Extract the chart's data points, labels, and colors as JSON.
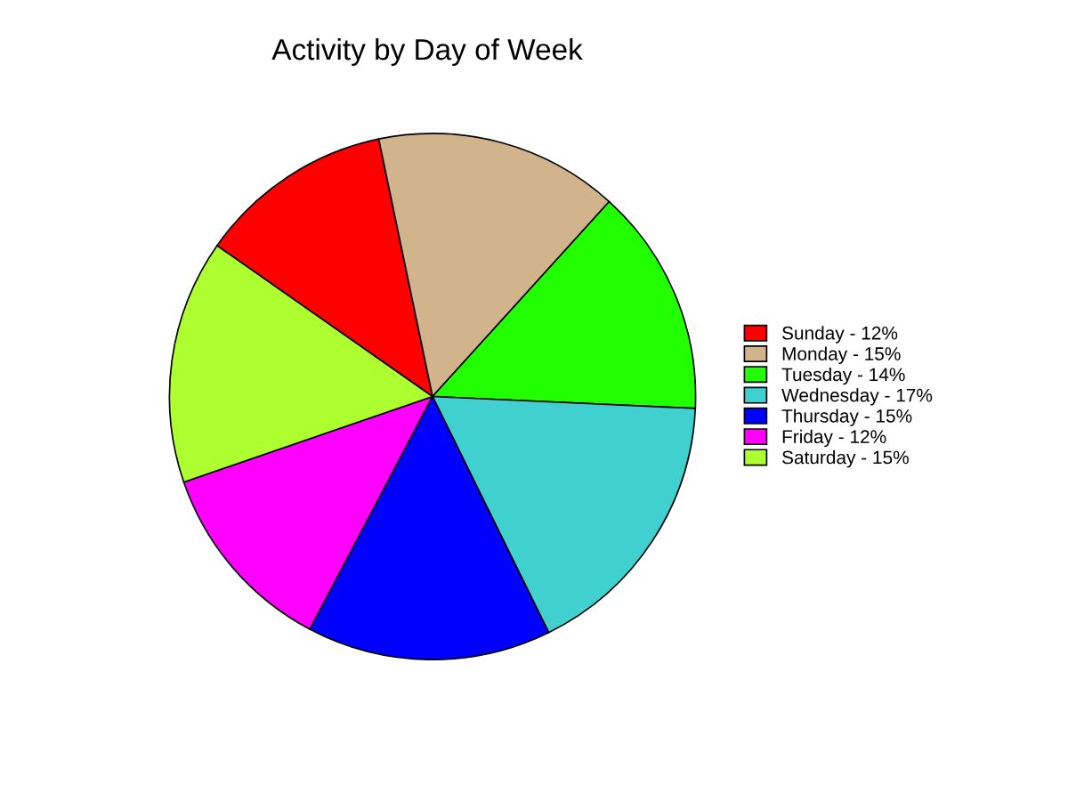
{
  "chart_data": {
    "type": "pie",
    "title": "Activity by Day of Week",
    "categories": [
      "Sunday - 12%",
      "Monday - 15%",
      "Tuesday - 14%",
      "Wednesday - 17%",
      "Thursday - 15%",
      "Friday - 12%",
      "Saturday - 15%"
    ],
    "values": [
      12,
      15,
      14,
      17,
      15,
      12,
      15
    ],
    "colors": [
      "#ff0000",
      "#d2b48c",
      "#22ff00",
      "#40d0d0",
      "#0000ff",
      "#ff00ff",
      "#adff2f"
    ],
    "legend": "right"
  }
}
